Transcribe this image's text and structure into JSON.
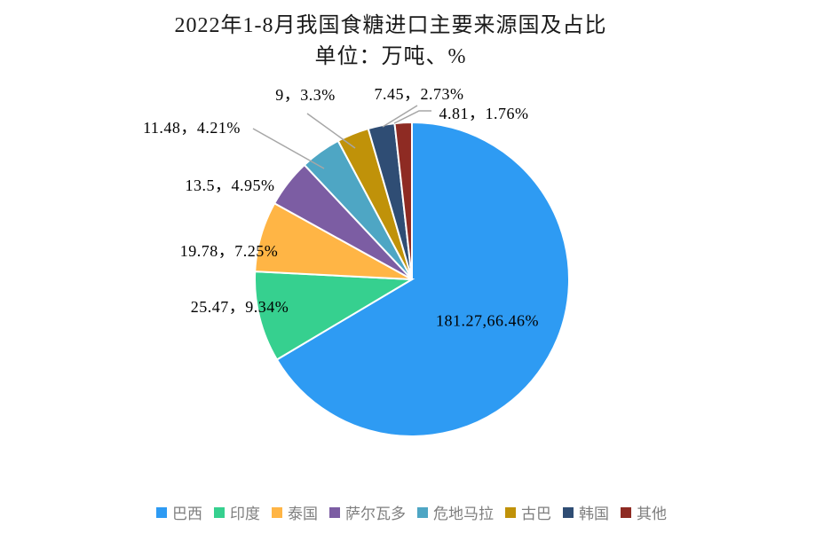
{
  "title": {
    "line1": "2022年1-8月我国食糖进口主要来源国及占比",
    "line2": "单位：万吨、%"
  },
  "chart_data": {
    "type": "pie",
    "title": "2022年1-8月我国食糖进口主要来源国及占比",
    "subtitle": "单位：万吨、%",
    "unit": "万吨、%",
    "categories": [
      "巴西",
      "印度",
      "泰国",
      "萨尔瓦多",
      "危地马拉",
      "古巴",
      "韩国",
      "其他"
    ],
    "values": [
      181.27,
      25.47,
      19.78,
      13.5,
      11.48,
      9,
      7.45,
      4.81
    ],
    "percents": [
      66.46,
      9.34,
      7.25,
      4.95,
      4.21,
      3.3,
      2.73,
      1.76
    ],
    "colors": [
      "#2E9BF3",
      "#36D08F",
      "#FFB545",
      "#7C5DA3",
      "#4EA6C4",
      "#C09209",
      "#2F4D74",
      "#8E2B23"
    ],
    "labels": [
      "181.27,66.46%",
      "25.47，9.34%",
      "19.78，7.25%",
      "13.5，4.95%",
      "11.48，4.21%",
      "9，3.3%",
      "7.45，2.73%",
      "4.81，1.76%"
    ],
    "start_angle": 0,
    "direction": "clockwise",
    "legend_position": "bottom",
    "label_color": "#000000",
    "leader_line_color": "#A6A6A6",
    "slice_border_color": "#FFFFFF"
  }
}
